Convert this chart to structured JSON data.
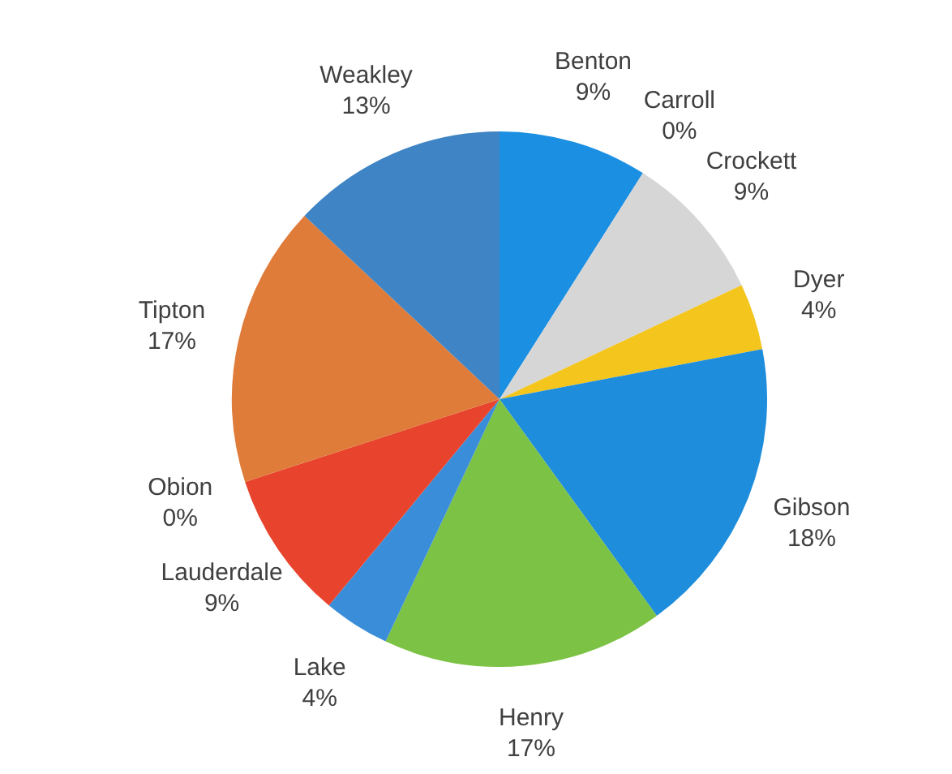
{
  "chart_data": {
    "type": "pie",
    "categories": [
      "Benton",
      "Carroll",
      "Crockett",
      "Dyer",
      "Gibson",
      "Henry",
      "Lake",
      "Lauderdale",
      "Obion",
      "Tipton",
      "Weakley"
    ],
    "values": [
      9,
      0,
      9,
      4,
      18,
      17,
      4,
      9,
      0,
      17,
      13
    ],
    "value_labels": [
      "9%",
      "0%",
      "9%",
      "4%",
      "18%",
      "17%",
      "4%",
      "9%",
      "0%",
      "17%",
      "13%"
    ],
    "colors": [
      "#1b8fe2",
      "#4472c4",
      "#d6d6d6",
      "#f4c51c",
      "#1e8ddc",
      "#7cc245",
      "#3a8dd8",
      "#e8432c",
      "#a5a5a5",
      "#df7c3a",
      "#3f84c4"
    ],
    "legend": false
  }
}
